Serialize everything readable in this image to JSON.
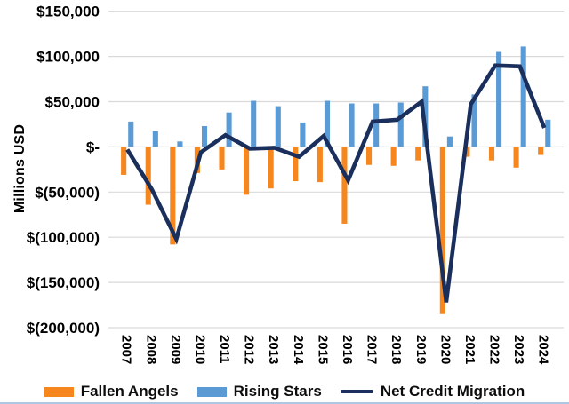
{
  "figure": {
    "y_axis_title": "Millions USD",
    "y_ticks": [
      {
        "value": 150000,
        "label": "$150,000"
      },
      {
        "value": 100000,
        "label": "$100,000"
      },
      {
        "value": 50000,
        "label": "$50,000"
      },
      {
        "value": 0,
        "label": "$-"
      },
      {
        "value": -50000,
        "label": "$(50,000)"
      },
      {
        "value": -100000,
        "label": "$(100,000)"
      },
      {
        "value": -150000,
        "label": "$(150,000)"
      },
      {
        "value": -200000,
        "label": "$(200,000)"
      }
    ],
    "legend": [
      {
        "label": "Fallen Angels",
        "swatch": "rect",
        "color": "#F6871F"
      },
      {
        "label": "Rising Stars",
        "swatch": "rect",
        "color": "#5B9BD5"
      },
      {
        "label": "Net Credit Migration",
        "swatch": "line",
        "color": "#1A2F5C"
      }
    ]
  },
  "chart_data": {
    "type": "bar",
    "subtype": "bar-with-line-overlay",
    "categories": [
      "2007",
      "2008",
      "2009",
      "2010",
      "2011",
      "2012",
      "2013",
      "2014",
      "2015",
      "2016",
      "2017",
      "2018",
      "2019",
      "2020",
      "2021",
      "2022",
      "2023",
      "2024"
    ],
    "series": [
      {
        "name": "Fallen Angels",
        "type": "bar",
        "color": "#F6871F",
        "values": [
          -31000,
          -64000,
          -108000,
          -29000,
          -25000,
          -53000,
          -46000,
          -38000,
          -39000,
          -85000,
          -20000,
          -21000,
          -15000,
          -185000,
          -11000,
          -15000,
          -23000,
          -9000
        ]
      },
      {
        "name": "Rising Stars",
        "type": "bar",
        "color": "#5B9BD5",
        "values": [
          28000,
          17500,
          6000,
          23000,
          38000,
          51000,
          45000,
          27000,
          51000,
          48000,
          48000,
          49000,
          67000,
          11500,
          58000,
          105000,
          111000,
          30000
        ]
      },
      {
        "name": "Net Credit Migration",
        "type": "line",
        "color": "#1A2F5C",
        "values": [
          -3000,
          -47000,
          -102000,
          -6000,
          13000,
          -2000,
          -1000,
          -11000,
          12000,
          -37000,
          28000,
          30000,
          50000,
          -172000,
          47000,
          90000,
          89000,
          21000
        ]
      }
    ],
    "title": "",
    "xlabel": "",
    "ylabel": "Millions USD",
    "ylim": [
      -200000,
      150000
    ],
    "ytick_step": 50000,
    "grid": "horizontal",
    "gridline_color": "#D9D9D9",
    "legend_position": "bottom"
  }
}
